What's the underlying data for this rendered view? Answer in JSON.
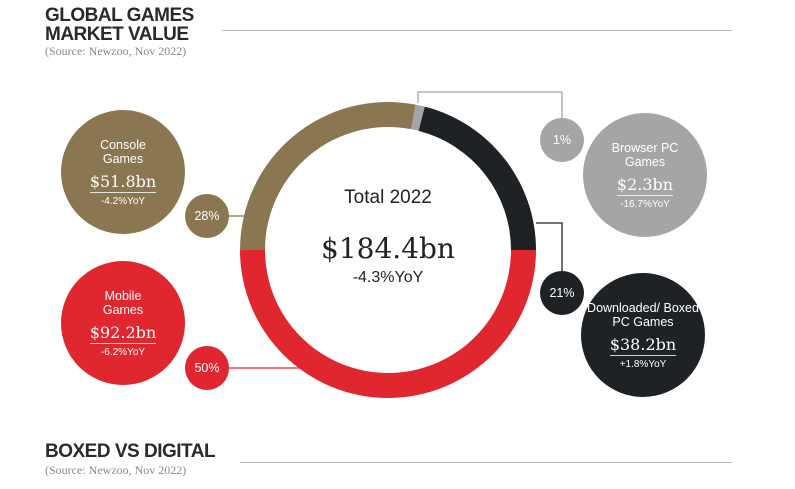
{
  "header": {
    "title_line1": "GLOBAL GAMES",
    "title_line2": "MARKET VALUE",
    "source": "(Source: Newzoo, Nov 2022)"
  },
  "footer": {
    "title": "BOXED VS DIGITAL",
    "source": "(Source: Newzoo, Nov 2022)"
  },
  "center": {
    "label": "Total 2022",
    "value": "$184.4bn",
    "yoy": "-4.3%YoY"
  },
  "segments": [
    {
      "name": "Console Games",
      "value": "$51.8bn",
      "yoy": "-4.2%YoY",
      "pct": "28%",
      "color": "#8a7650"
    },
    {
      "name": "Browser PC Games",
      "value": "$2.3bn",
      "yoy": "-16.7%YoY",
      "pct": "1%",
      "color": "#a5a5a5"
    },
    {
      "name": "Downloaded/ Boxed PC Games",
      "value": "$38.2bn",
      "yoy": "+1.8%YoY",
      "pct": "21%",
      "color": "#1f2225"
    },
    {
      "name": "Mobile Games",
      "value": "$92.2bn",
      "yoy": "-6.2%YoY",
      "pct": "50%",
      "color": "#e0262e"
    }
  ],
  "chart_data": {
    "type": "pie",
    "subtype": "donut",
    "title": "GLOBAL GAMES MARKET VALUE",
    "total": 184.4,
    "total_yoy_percent": -4.3,
    "categories": [
      "Console Games",
      "Browser PC Games",
      "Downloaded/Boxed PC Games",
      "Mobile Games"
    ],
    "values_bn": [
      51.8,
      2.3,
      38.2,
      92.2
    ],
    "shares_percent": [
      28,
      1,
      21,
      50
    ],
    "yoy_percent": [
      -4.2,
      -16.7,
      1.8,
      -6.2
    ]
  }
}
